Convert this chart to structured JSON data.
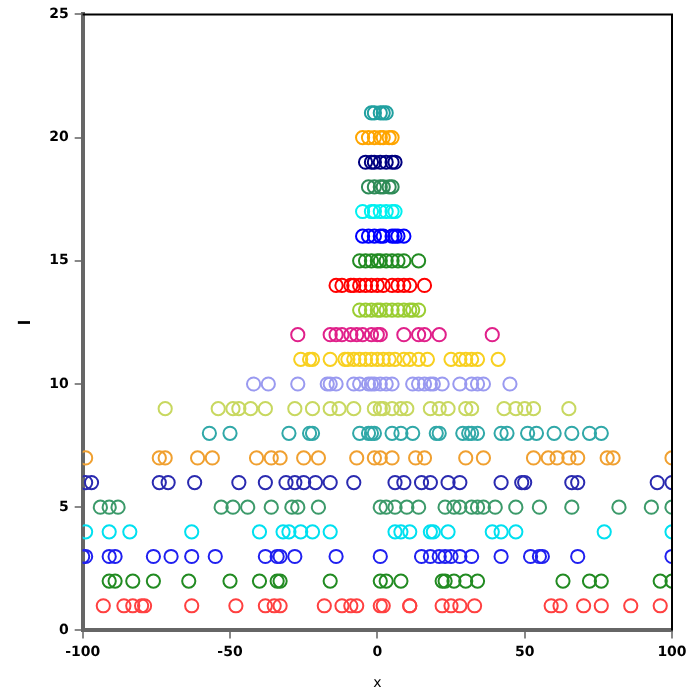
{
  "chart_data": {
    "type": "scatter",
    "xlabel": "x",
    "ylabel": "l",
    "xlim": [
      -100,
      100
    ],
    "xticks": [
      -100,
      -50,
      0,
      50,
      100
    ],
    "ylim": [
      0,
      25
    ],
    "yticks": [
      0,
      5,
      10,
      15,
      20,
      25
    ],
    "grid": false,
    "legend": false,
    "marker": "circle",
    "series": [
      {
        "color": "#ff4040",
        "x": [
          -93,
          -86,
          -83,
          -80,
          -79,
          -63,
          -48,
          -38,
          -35,
          -33,
          -18,
          -12,
          -9,
          -7,
          1,
          2,
          11,
          11,
          22,
          25,
          28,
          33,
          59,
          62,
          70,
          76,
          86,
          96
        ],
        "values": [
          1,
          1,
          1,
          1,
          1,
          1,
          1,
          1,
          1,
          1,
          1,
          1,
          1,
          1,
          1,
          1,
          1,
          1,
          1,
          1,
          1,
          1,
          1,
          1,
          1,
          1,
          1,
          1
        ]
      },
      {
        "color": "#228b22",
        "x": [
          -91,
          -89,
          -83,
          -76,
          -64,
          -50,
          -40,
          -34,
          -33,
          -16,
          1,
          3,
          8,
          22,
          23,
          26,
          30,
          34,
          63,
          72,
          76,
          96,
          100
        ],
        "values": [
          2,
          2,
          2,
          2,
          2,
          2,
          2,
          2,
          2,
          2,
          2,
          2,
          2,
          2,
          2,
          2,
          2,
          2,
          2,
          2,
          2,
          2,
          2
        ]
      },
      {
        "color": "#2020f0",
        "x": [
          -100,
          -99,
          -91,
          -89,
          -76,
          -70,
          -63,
          -55,
          -38,
          -34,
          -33,
          -28,
          -14,
          1,
          15,
          18,
          21,
          23,
          25,
          28,
          32,
          42,
          52,
          55,
          56,
          68,
          100
        ],
        "values": [
          3,
          3,
          3,
          3,
          3,
          3,
          3,
          3,
          3,
          3,
          3,
          3,
          3,
          3,
          3,
          3,
          3,
          3,
          3,
          3,
          3,
          3,
          3,
          3,
          3,
          3,
          3
        ]
      },
      {
        "color": "#00e0f0",
        "x": [
          -99,
          -91,
          -84,
          -63,
          -40,
          -32,
          -30,
          -26,
          -22,
          -16,
          6,
          8,
          11,
          18,
          19,
          24,
          39,
          42,
          47,
          77,
          100
        ],
        "values": [
          4,
          4,
          4,
          4,
          4,
          4,
          4,
          4,
          4,
          4,
          4,
          4,
          4,
          4,
          4,
          4,
          4,
          4,
          4,
          4,
          4
        ]
      },
      {
        "color": "#3c9a6a",
        "x": [
          -94,
          -91,
          -88,
          -53,
          -49,
          -44,
          -36,
          -29,
          -27,
          -20,
          1,
          3,
          6,
          10,
          14,
          23,
          26,
          28,
          32,
          34,
          36,
          40,
          47,
          55,
          66,
          82,
          93,
          100
        ],
        "values": [
          5,
          5,
          5,
          5,
          5,
          5,
          5,
          5,
          5,
          5,
          5,
          5,
          5,
          5,
          5,
          5,
          5,
          5,
          5,
          5,
          5,
          5,
          5,
          5,
          5,
          5,
          5,
          5
        ]
      },
      {
        "color": "#2a2ab0",
        "x": [
          -99,
          -97,
          -74,
          -71,
          -62,
          -47,
          -38,
          -31,
          -28,
          -25,
          -21,
          -16,
          -8,
          6,
          9,
          15,
          18,
          24,
          28,
          42,
          49,
          50,
          66,
          68,
          95,
          100
        ],
        "values": [
          6,
          6,
          6,
          6,
          6,
          6,
          6,
          6,
          6,
          6,
          6,
          6,
          6,
          6,
          6,
          6,
          6,
          6,
          6,
          6,
          6,
          6,
          6,
          6,
          6,
          6
        ]
      },
      {
        "color": "#f0a030",
        "x": [
          -99,
          -74,
          -72,
          -61,
          -56,
          -41,
          -36,
          -33,
          -25,
          -20,
          -7,
          -1,
          1,
          5,
          13,
          16,
          30,
          36,
          53,
          58,
          61,
          65,
          68,
          78,
          80,
          100
        ],
        "values": [
          7,
          7,
          7,
          7,
          7,
          7,
          7,
          7,
          7,
          7,
          7,
          7,
          7,
          7,
          7,
          7,
          7,
          7,
          7,
          7,
          7,
          7,
          7,
          7,
          7,
          7
        ]
      },
      {
        "color": "#30a8a8",
        "x": [
          -57,
          -50,
          -30,
          -23,
          -22,
          -6,
          -3,
          -2,
          -1,
          5,
          8,
          12,
          20,
          21,
          29,
          31,
          32,
          34,
          42,
          44,
          51,
          54,
          60,
          66,
          72,
          76
        ],
        "values": [
          8,
          8,
          8,
          8,
          8,
          8,
          8,
          8,
          8,
          8,
          8,
          8,
          8,
          8,
          8,
          8,
          8,
          8,
          8,
          8,
          8,
          8,
          8,
          8,
          8,
          8
        ]
      },
      {
        "color": "#c8d860",
        "x": [
          -72,
          -54,
          -49,
          -47,
          -43,
          -38,
          -28,
          -22,
          -16,
          -13,
          -8,
          -1,
          1,
          2,
          5,
          8,
          10,
          18,
          21,
          24,
          30,
          32,
          43,
          47,
          50,
          53,
          65
        ],
        "values": [
          9,
          9,
          9,
          9,
          9,
          9,
          9,
          9,
          9,
          9,
          9,
          9,
          9,
          9,
          9,
          9,
          9,
          9,
          9,
          9,
          9,
          9,
          9,
          9,
          9,
          9,
          9
        ]
      },
      {
        "color": "#9a9af0",
        "x": [
          -42,
          -37,
          -27,
          -17,
          -16,
          -14,
          -8,
          -6,
          -3,
          -2,
          -1,
          1,
          3,
          5,
          12,
          14,
          16,
          18,
          19,
          22,
          28,
          32,
          34,
          36,
          45
        ],
        "values": [
          10,
          10,
          10,
          10,
          10,
          10,
          10,
          10,
          10,
          10,
          10,
          10,
          10,
          10,
          10,
          10,
          10,
          10,
          10,
          10,
          10,
          10,
          10,
          10,
          10
        ]
      },
      {
        "color": "#f8d020",
        "x": [
          -26,
          -23,
          -22,
          -16,
          -11,
          -10,
          -8,
          -6,
          -4,
          -2,
          0,
          2,
          4,
          6,
          9,
          11,
          14,
          17,
          25,
          28,
          30,
          32,
          34,
          41
        ],
        "values": [
          11,
          11,
          11,
          11,
          11,
          11,
          11,
          11,
          11,
          11,
          11,
          11,
          11,
          11,
          11,
          11,
          11,
          11,
          11,
          11,
          11,
          11,
          11,
          11
        ]
      },
      {
        "color": "#e0208a",
        "x": [
          -27,
          -16,
          -14,
          -12,
          -9,
          -7,
          -5,
          -2,
          0,
          1,
          9,
          14,
          16,
          21,
          39
        ],
        "values": [
          12,
          12,
          12,
          12,
          12,
          12,
          12,
          12,
          12,
          12,
          12,
          12,
          12,
          12,
          12
        ]
      },
      {
        "color": "#9acd32",
        "x": [
          -6,
          -4,
          -2,
          0,
          1,
          3,
          5,
          7,
          9,
          11,
          12,
          14
        ],
        "values": [
          13,
          13,
          13,
          13,
          13,
          13,
          13,
          13,
          13,
          13,
          13,
          13
        ]
      },
      {
        "color": "#ff0000",
        "x": [
          -14,
          -12,
          -9,
          -8,
          -6,
          -4,
          -2,
          0,
          2,
          5,
          7,
          9,
          11,
          16
        ],
        "values": [
          14,
          14,
          14,
          14,
          14,
          14,
          14,
          14,
          14,
          14,
          14,
          14,
          14,
          14
        ]
      },
      {
        "color": "#228b22",
        "x": [
          -6,
          -4,
          -2,
          0,
          1,
          3,
          5,
          7,
          9,
          14
        ],
        "values": [
          15,
          15,
          15,
          15,
          15,
          15,
          15,
          15,
          15,
          15
        ]
      },
      {
        "color": "#0000ff",
        "x": [
          -5,
          -3,
          -1,
          1,
          2,
          5,
          6,
          7,
          9
        ],
        "values": [
          16,
          16,
          16,
          16,
          16,
          16,
          16,
          16,
          16
        ]
      },
      {
        "color": "#00f0f0",
        "x": [
          -5,
          -2,
          -1,
          1,
          3,
          5,
          6
        ],
        "values": [
          17,
          17,
          17,
          17,
          17,
          17,
          17
        ]
      },
      {
        "color": "#2e8b57",
        "x": [
          -3,
          -1,
          1,
          2,
          4,
          5
        ],
        "values": [
          18,
          18,
          18,
          18,
          18,
          18
        ]
      },
      {
        "color": "#000080",
        "x": [
          -4,
          -2,
          -1,
          1,
          3,
          5,
          6
        ],
        "values": [
          19,
          19,
          19,
          19,
          19,
          19,
          19
        ]
      },
      {
        "color": "#ffa500",
        "x": [
          -5,
          -3,
          -1,
          1,
          2,
          4,
          5
        ],
        "values": [
          20,
          20,
          20,
          20,
          20,
          20,
          20
        ]
      },
      {
        "color": "#20a0a0",
        "x": [
          -2,
          -1,
          1,
          2,
          3
        ],
        "values": [
          21,
          21,
          21,
          21,
          21
        ]
      }
    ]
  }
}
